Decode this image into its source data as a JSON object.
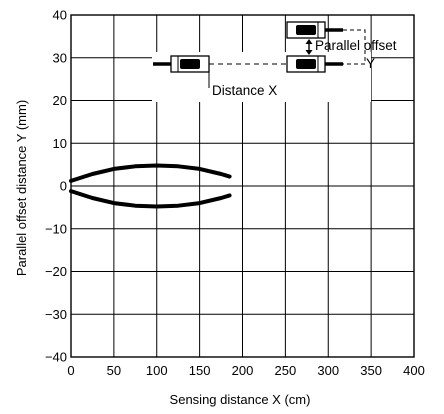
{
  "chart_data": {
    "type": "line",
    "title": "",
    "xlabel": "Sensing distance X (cm)",
    "ylabel": "Parallel offset distance Y (mm)",
    "xlim": [
      0,
      400
    ],
    "ylim": [
      -40,
      40
    ],
    "x_ticks": [
      0,
      50,
      100,
      150,
      200,
      250,
      300,
      350,
      400
    ],
    "y_ticks": [
      40,
      30,
      20,
      10,
      0,
      -10,
      -20,
      -30,
      -40
    ],
    "x_tick_labels": [
      "0",
      "50",
      "100",
      "150",
      "200",
      "250",
      "300",
      "350",
      "400"
    ],
    "y_tick_labels": [
      "40",
      "30",
      "20",
      "10",
      "0",
      "−10",
      "−20",
      "−30",
      "−40"
    ],
    "grid": true,
    "series": [
      {
        "color": "#000000",
        "x": [
          0,
          25,
          50,
          75,
          100,
          125,
          150,
          175,
          185
        ],
        "y": [
          1.2,
          2.8,
          4.0,
          4.6,
          4.8,
          4.6,
          4.0,
          2.8,
          2.2
        ]
      },
      {
        "color": "#000000",
        "x": [
          0,
          25,
          50,
          75,
          100,
          125,
          150,
          175,
          185
        ],
        "y": [
          -1.2,
          -2.8,
          -4.0,
          -4.6,
          -4.8,
          -4.6,
          -4.0,
          -2.8,
          -2.2
        ]
      }
    ],
    "inset": {
      "distance_label": "Distance X",
      "offset_label_line1": "Parallel offset",
      "offset_label_line2": "Y"
    }
  }
}
